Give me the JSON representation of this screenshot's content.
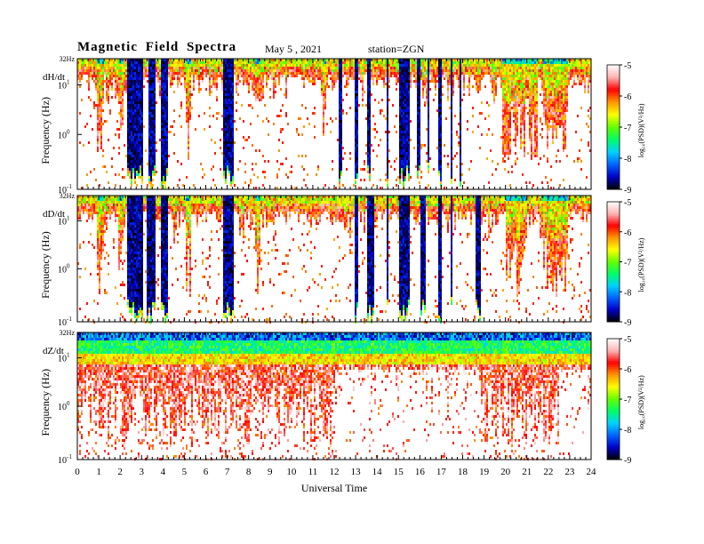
{
  "header": {
    "title": "Magnetic  Field  Spectra",
    "date": "May 5  , 2021",
    "station": "station=ZGN"
  },
  "chart_data": {
    "type": "heatmap",
    "title": "Magnetic  Field  Spectra",
    "xlabel": "Universal  Time",
    "x_ticks": [
      "0",
      "1",
      "2",
      "3",
      "4",
      "5",
      "6",
      "7",
      "8",
      "9",
      "10",
      "11",
      "12",
      "13",
      "14",
      "15",
      "16",
      "17",
      "18",
      "19",
      "20",
      "21",
      "22",
      "23",
      "24"
    ],
    "xlim": [
      0,
      24
    ],
    "yscale": "log",
    "ylabel": "Frequency  (Hz)",
    "y_tick_labels": {
      "top": "32Hz",
      "upper": "10",
      "upper_exp": "1",
      "middle": "10",
      "middle_exp": "0",
      "bottom": "10",
      "bottom_exp": "-1"
    },
    "colorbar": {
      "label": "log₁₀(PSD)(V²/Hz)",
      "ticks": [
        "-5",
        "-6",
        "-7",
        "-8",
        "-9"
      ],
      "range": [
        -9,
        -5
      ],
      "colors": [
        "#000000",
        "#0000c8",
        "#0064ff",
        "#00d2ff",
        "#00ff64",
        "#64ff00",
        "#ffff00",
        "#ff9600",
        "#ff0000",
        "#ffb4b4",
        "#ffffff"
      ]
    },
    "panels": [
      {
        "component": "dH/dt",
        "dark_intervals": [
          [
            2.3,
            3.0
          ],
          [
            3.3,
            3.6
          ],
          [
            3.9,
            4.2
          ],
          [
            6.8,
            7.3
          ],
          [
            12.2,
            12.3
          ],
          [
            12.9,
            13.1
          ],
          [
            13.5,
            13.7
          ],
          [
            14.4,
            14.5
          ],
          [
            15.0,
            15.5
          ],
          [
            15.8,
            16.0
          ],
          [
            16.3,
            16.4
          ],
          [
            16.8,
            17.0
          ],
          [
            17.4,
            17.5
          ],
          [
            17.8,
            17.9
          ]
        ],
        "strong_intervals": [
          [
            0.9,
            1.2
          ],
          [
            1.9,
            2.1
          ],
          [
            5.0,
            5.3
          ],
          [
            8.3,
            8.5
          ],
          [
            11.4,
            11.6
          ],
          [
            19.8,
            21.5
          ],
          [
            21.7,
            22.9
          ]
        ]
      },
      {
        "component": "dD/dt",
        "dark_intervals": [
          [
            2.3,
            3.0
          ],
          [
            3.2,
            3.6
          ],
          [
            3.9,
            4.2
          ],
          [
            6.8,
            7.3
          ],
          [
            12.9,
            13.1
          ],
          [
            13.5,
            13.8
          ],
          [
            14.4,
            14.5
          ],
          [
            15.0,
            15.5
          ],
          [
            16.0,
            16.2
          ],
          [
            16.8,
            17.0
          ],
          [
            17.4,
            17.5
          ],
          [
            18.6,
            18.8
          ]
        ],
        "strong_intervals": [
          [
            0.9,
            1.2
          ],
          [
            1.9,
            2.1
          ],
          [
            5.0,
            5.3
          ],
          [
            8.3,
            8.5
          ],
          [
            20.0,
            21.0
          ],
          [
            21.6,
            22.9
          ]
        ]
      },
      {
        "component": "dZ/dt",
        "dark_intervals": [
          [
            0.0,
            24.0
          ]
        ],
        "strong_intervals": [
          [
            0.0,
            12.0
          ],
          [
            18.7,
            22.5
          ]
        ]
      }
    ]
  }
}
